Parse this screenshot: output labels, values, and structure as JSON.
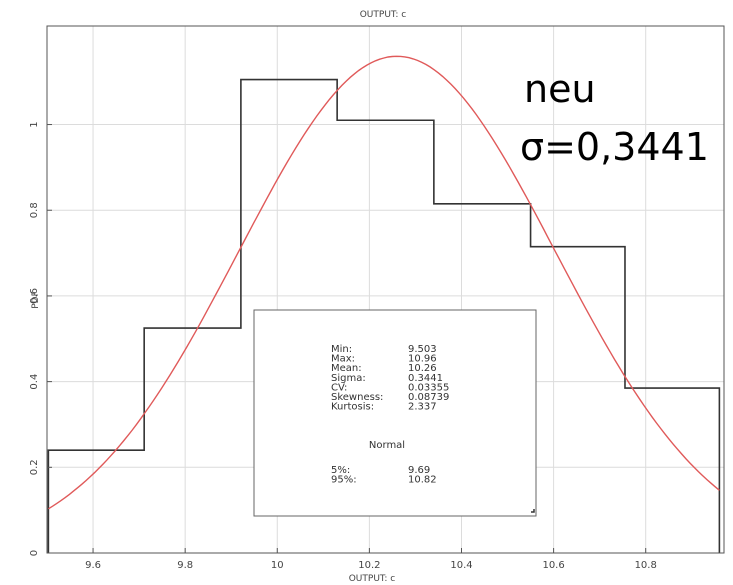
{
  "chart_data": {
    "type": "bar",
    "title": "OUTPUT: c",
    "xlabel": "OUTPUT: c",
    "ylabel": "PDF",
    "xlim": [
      9.5,
      10.97
    ],
    "ylim": [
      0,
      1.23
    ],
    "x_ticks": [
      "9.6",
      "9.8",
      "10",
      "10.2",
      "10.4",
      "10.6",
      "10.8"
    ],
    "x_tick_values": [
      9.6,
      9.8,
      10.0,
      10.2,
      10.4,
      10.6,
      10.8
    ],
    "y_ticks": [
      "0",
      "0.2",
      "0.4",
      "0.6",
      "0.8",
      "1"
    ],
    "y_tick_values": [
      0,
      0.2,
      0.4,
      0.6,
      0.8,
      1.0
    ],
    "grid": true,
    "series": [
      {
        "type": "histogram-step",
        "color": "#333333",
        "bins": [
          {
            "x0": 9.503,
            "x1": 9.711,
            "y": 0.24
          },
          {
            "x0": 9.711,
            "x1": 9.921,
            "y": 0.525
          },
          {
            "x0": 9.921,
            "x1": 10.13,
            "y": 1.105
          },
          {
            "x0": 10.13,
            "x1": 10.34,
            "y": 1.01
          },
          {
            "x0": 10.34,
            "x1": 10.55,
            "y": 0.815
          },
          {
            "x0": 10.55,
            "x1": 10.755,
            "y": 0.715
          },
          {
            "x0": 10.755,
            "x1": 10.96,
            "y": 0.385
          }
        ]
      },
      {
        "type": "normal-fit-line",
        "color": "#e05a5a",
        "mean": 10.26,
        "sigma": 0.3441
      }
    ],
    "stats_box": {
      "rows": [
        {
          "label": "Min:",
          "value": "9.503"
        },
        {
          "label": "Max:",
          "value": "10.96"
        },
        {
          "label": "Mean:",
          "value": "10.26"
        },
        {
          "label": "Sigma:",
          "value": "0.3441"
        },
        {
          "label": "CV:",
          "value": "0.03355"
        },
        {
          "label": "Skewness:",
          "value": "0.08739"
        },
        {
          "label": "Kurtosis:",
          "value": "2.337"
        }
      ],
      "fit_name": "Normal",
      "percentiles": [
        {
          "label": "5%:",
          "value": "9.69"
        },
        {
          "label": "95%:",
          "value": "10.82"
        }
      ]
    }
  },
  "annotation": {
    "line1": "neu",
    "line2": "σ=0,3441"
  }
}
